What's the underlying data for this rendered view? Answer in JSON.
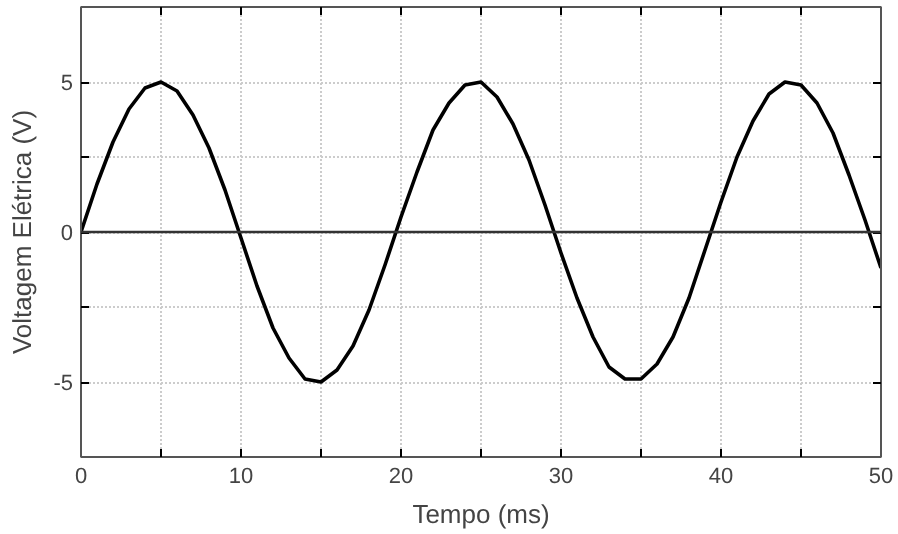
{
  "chart_data": {
    "type": "line",
    "xlabel": "Tempo (ms)",
    "ylabel": "Voltagem Elétrica (V)",
    "x": [
      0,
      1,
      2,
      3,
      4,
      5,
      6,
      7,
      8,
      9,
      10,
      11,
      12,
      13,
      14,
      15,
      16,
      17,
      18,
      19,
      20,
      21,
      22,
      23,
      24,
      25,
      26,
      27,
      28,
      29,
      30,
      31,
      32,
      33,
      34,
      35,
      36,
      37,
      38,
      39,
      40,
      41,
      42,
      43,
      44,
      45,
      46,
      47,
      48,
      49,
      50
    ],
    "series": [
      {
        "color": "#000000",
        "values": [
          0,
          1.6,
          3.0,
          4.1,
          4.8,
          5.0,
          4.7,
          3.9,
          2.8,
          1.4,
          -0.2,
          -1.8,
          -3.2,
          -4.2,
          -4.9,
          -5.0,
          -4.6,
          -3.8,
          -2.6,
          -1.1,
          0.5,
          2.0,
          3.4,
          4.3,
          4.9,
          5.0,
          4.5,
          3.6,
          2.4,
          0.9,
          -0.7,
          -2.2,
          -3.5,
          -4.5,
          -4.9,
          -4.9,
          -4.4,
          -3.5,
          -2.2,
          -0.6,
          1.0,
          2.5,
          3.7,
          4.6,
          5.0,
          4.9,
          4.3,
          3.3,
          1.9,
          0.4,
          -1.2
        ]
      }
    ],
    "xlim": [
      0,
      50
    ],
    "ylim": [
      -7.5,
      7.5
    ],
    "xticks": [
      0,
      {
        "value": 5,
        "label": null
      },
      10,
      {
        "value": 15,
        "label": null
      },
      20,
      {
        "value": 25,
        "label": null
      },
      30,
      {
        "value": 35,
        "label": null
      },
      40,
      {
        "value": 45,
        "label": null
      },
      50
    ],
    "yticks": [
      -5,
      {
        "value": -2.5,
        "label": null
      },
      0,
      {
        "value": 2.5,
        "label": null
      },
      5
    ],
    "ref_lines": [
      {
        "axis": "y",
        "value": 0,
        "label": null,
        "color": "#333333"
      }
    ],
    "grid": true,
    "line_style": "solid",
    "marker": "none"
  }
}
